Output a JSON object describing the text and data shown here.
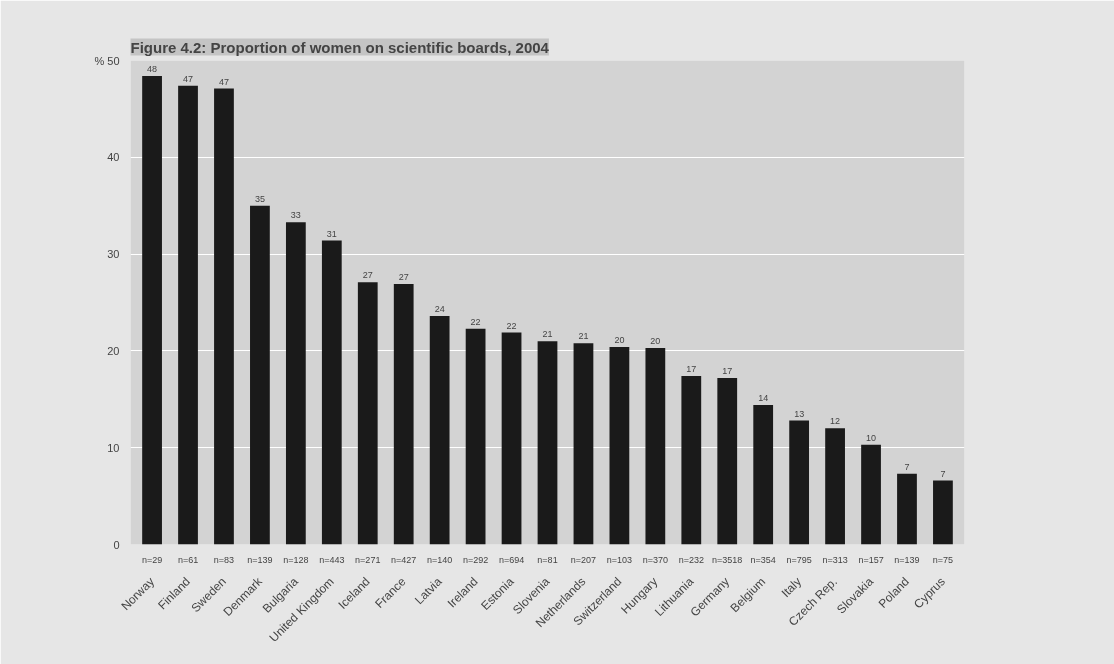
{
  "chart_data": {
    "type": "bar",
    "title": "Figure 4.2: Proportion of women on scientific boards, 2004",
    "categories": [
      "Norway",
      "Finland",
      "Sweden",
      "Denmark",
      "Bulgaria",
      "United Kingdom",
      "Iceland",
      "France",
      "Latvia",
      "Ireland",
      "Estonia",
      "Slovenia",
      "Netherlands",
      "Switzerland",
      "Hungary",
      "Lithuania",
      "Germany",
      "Belgium",
      "Italy",
      "Czech Rep.",
      "Slovakia",
      "Poland",
      "Cyprus"
    ],
    "values": [
      48.4,
      47.4,
      47.1,
      35.0,
      33.3,
      31.4,
      27.1,
      26.9,
      23.6,
      22.3,
      21.9,
      21.0,
      20.8,
      20.4,
      20.3,
      17.4,
      17.2,
      14.4,
      12.8,
      12.0,
      10.3,
      7.3,
      6.6
    ],
    "value_labels": [
      "48",
      "47",
      "47",
      "35",
      "33",
      "31",
      "27",
      "27",
      "24",
      "22",
      "22",
      "21",
      "21",
      "20",
      "20",
      "17",
      "17",
      "14",
      "13",
      "12",
      "10",
      "7",
      "7"
    ],
    "color": "#1a1a1a",
    "ylim": [
      0,
      50
    ],
    "yticks": [
      0,
      10,
      20,
      30,
      40,
      {
        "value": 50,
        "label": "% 50"
      }
    ],
    "grid": "y",
    "annotations": [
      "n=29",
      "n=61",
      "n=83",
      "n=139",
      "n=128",
      "n=443",
      "n=271",
      "n=427",
      "n=140",
      "n=292",
      "n=694",
      "n=81",
      "n=207",
      "n=103",
      "n=370",
      "n=232",
      "n=3518",
      "n=354",
      "n=795",
      "n=313",
      "n=157",
      "n=139",
      "n=75"
    ]
  }
}
